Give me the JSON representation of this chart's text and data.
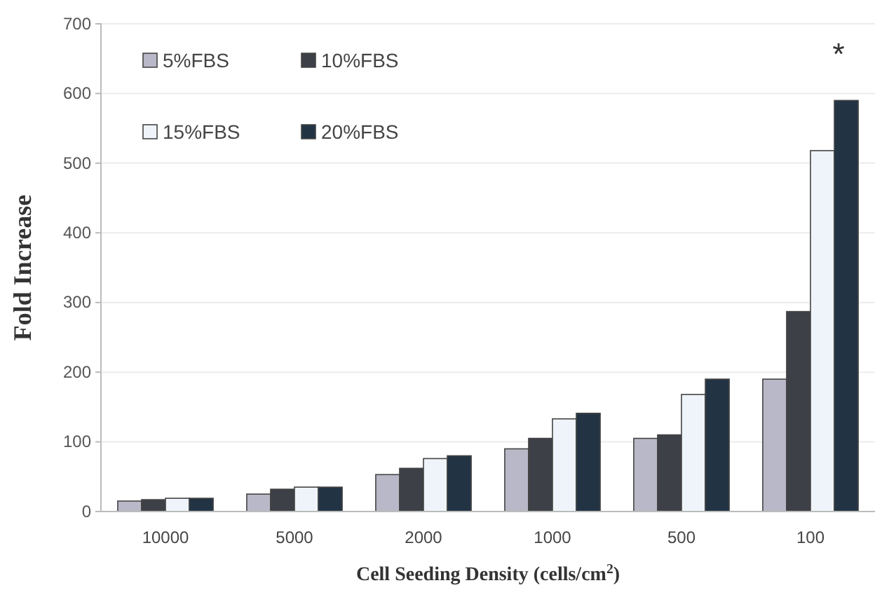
{
  "chart_data": {
    "type": "bar",
    "xlabel": "Cell Seeding Density (cells/cm$^{2}$)",
    "ylabel": "Fold Increase",
    "categories": [
      "10000",
      "5000",
      "2000",
      "1000",
      "500",
      "100"
    ],
    "series": [
      {
        "name": "5%FBS",
        "color": "#b8b8c8",
        "values": [
          15,
          25,
          53,
          90,
          105,
          190
        ]
      },
      {
        "name": "10%FBS",
        "color": "#3e4048",
        "values": [
          17,
          32,
          62,
          105,
          110,
          287
        ]
      },
      {
        "name": "15%FBS",
        "color": "#eef4fa",
        "values": [
          19,
          35,
          76,
          133,
          168,
          518
        ]
      },
      {
        "name": "20%FBS",
        "color": "#223444",
        "values": [
          19,
          35,
          80,
          141,
          190,
          590
        ]
      }
    ],
    "ylim": [
      0,
      700
    ],
    "yticks": [
      0,
      100,
      200,
      300,
      400,
      500,
      600,
      700
    ],
    "grid": "y",
    "legend": "top left",
    "annotations": [
      "*"
    ]
  }
}
